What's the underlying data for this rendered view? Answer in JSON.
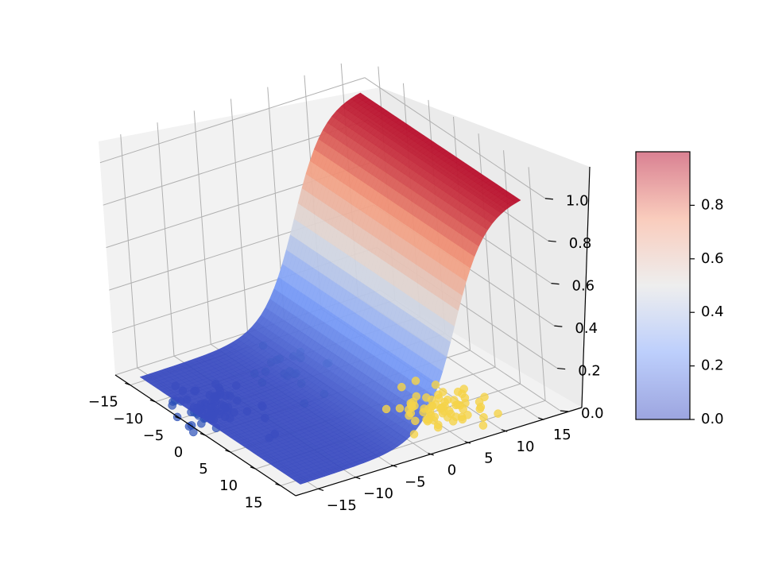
{
  "chart_data": {
    "type": "surface3d",
    "title": "",
    "xlabel": "",
    "ylabel": "",
    "zlabel": "",
    "xlim": [
      -18,
      18
    ],
    "ylim": [
      -18,
      18
    ],
    "zlim": [
      0,
      1.1
    ],
    "x_ticks": [
      -15,
      -10,
      -5,
      0,
      5,
      10,
      15
    ],
    "y_ticks": [
      -15,
      -10,
      -5,
      0,
      5,
      10,
      15
    ],
    "z_ticks": [
      0.0,
      0.2,
      0.4,
      0.6,
      0.8,
      1.0
    ],
    "x_tick_labels": [
      "−15",
      "−10",
      "−5",
      "0",
      "5",
      "10",
      "15"
    ],
    "y_tick_labels": [
      "−15",
      "−10",
      "−5",
      "0",
      "5",
      "10",
      "15"
    ],
    "z_tick_labels": [
      "0.0",
      "0.2",
      "0.4",
      "0.6",
      "0.8",
      "1.0"
    ],
    "grid": true,
    "surface": {
      "function": "logistic sigmoid of y",
      "midpoint_y": 6,
      "steepness": 2.5,
      "x_range": [
        -16,
        16
      ],
      "y_range": [
        -16,
        16
      ],
      "colormap": "coolwarm"
    },
    "clusters": [
      {
        "color": "#2a4fb8",
        "center": [
          -3,
          -15
        ],
        "count": 70
      },
      {
        "color": "#1f9e8f",
        "center": [
          -6,
          -3
        ],
        "count": 20
      },
      {
        "color": "#f5d34a",
        "center": [
          12,
          6
        ],
        "count": 70
      }
    ],
    "colorbar": {
      "min": 0.0,
      "max": 1.0,
      "tick_values": [
        0.0,
        0.2,
        0.4,
        0.6,
        0.8
      ],
      "tick_labels": [
        "0.0",
        "0.2",
        "0.4",
        "0.6",
        "0.8"
      ],
      "colormap": "coolwarm"
    }
  }
}
